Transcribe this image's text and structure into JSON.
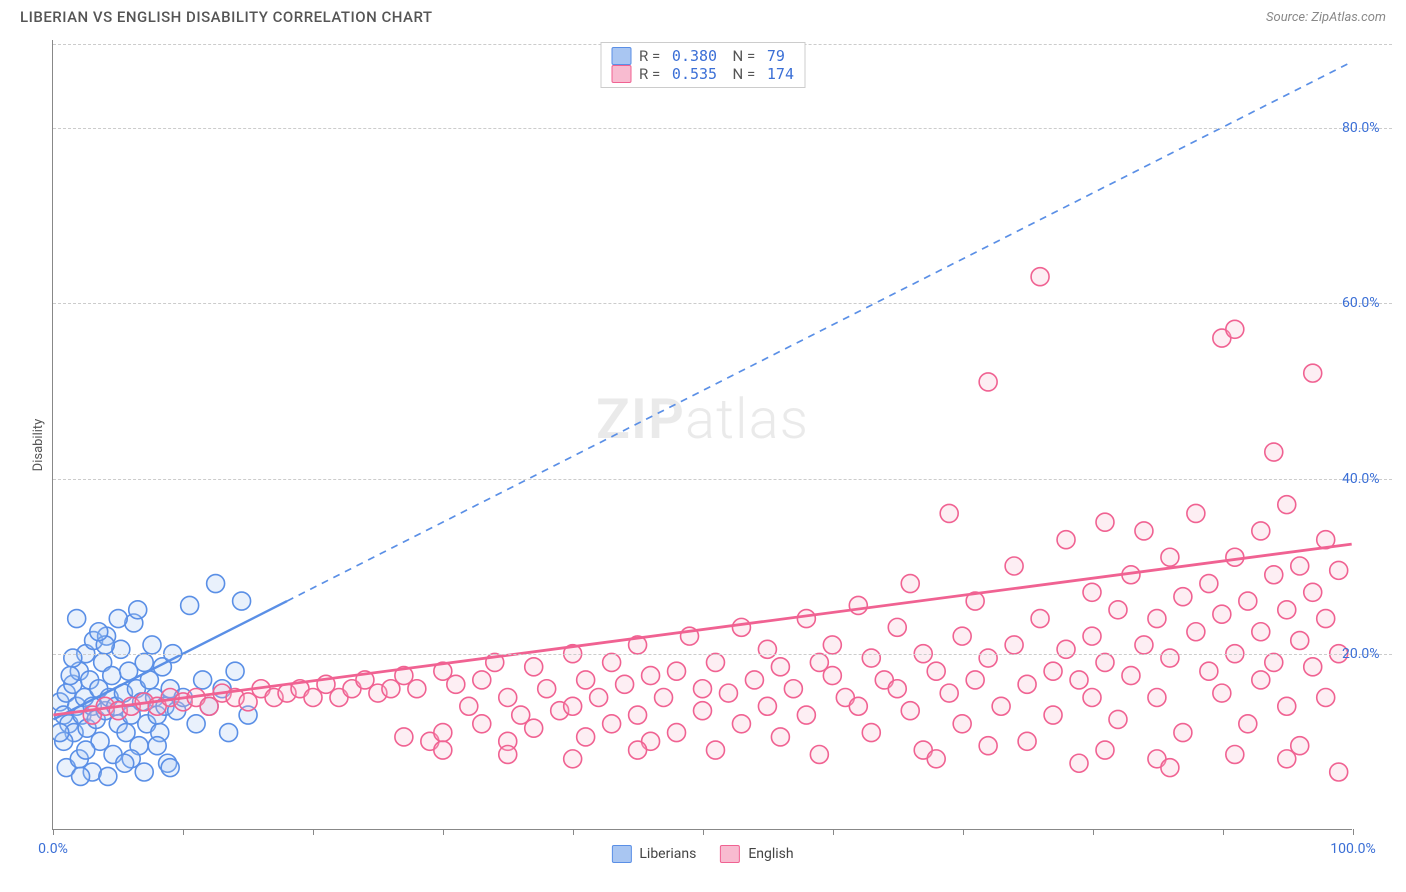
{
  "header": {
    "title": "LIBERIAN VS ENGLISH DISABILITY CORRELATION CHART",
    "source": "Source: ZipAtlas.com"
  },
  "chart": {
    "type": "scatter",
    "ylabel": "Disability",
    "watermark": "ZIPatlas",
    "background_color": "#ffffff",
    "grid_color": "#cccccc",
    "axis_color": "#888888",
    "label_color": "#3b6fd6",
    "label_fontsize": 14,
    "xlim": [
      0,
      100
    ],
    "ylim": [
      0,
      90
    ],
    "xticks": [
      0,
      10,
      20,
      30,
      40,
      50,
      60,
      70,
      80,
      90,
      100
    ],
    "xtick_labels": {
      "0": "0.0%",
      "100": "100.0%"
    },
    "yticks": [
      20,
      40,
      60,
      80
    ],
    "ytick_labels": {
      "20": "20.0%",
      "40": "40.0%",
      "60": "60.0%",
      "80": "80.0%"
    },
    "marker_radius": 9,
    "marker_stroke_width": 1.6,
    "marker_fill_opacity": 0.25,
    "series": [
      {
        "name": "Liberians",
        "color_stroke": "#5a8fe6",
        "color_fill": "#a9c6f2",
        "R": "0.380",
        "N": "79",
        "trend": {
          "slope": 0.75,
          "intercept": 12.5,
          "solid_x_max": 18,
          "dashed_x_max": 100,
          "width": 2.4
        },
        "points": [
          [
            0.5,
            14.5
          ],
          [
            0.8,
            13
          ],
          [
            1,
            15.5
          ],
          [
            1.2,
            12
          ],
          [
            1.5,
            16.5
          ],
          [
            1.6,
            11
          ],
          [
            1.8,
            14
          ],
          [
            2,
            18
          ],
          [
            2.2,
            13
          ],
          [
            2.4,
            15
          ],
          [
            2.5,
            20
          ],
          [
            2.6,
            11.5
          ],
          [
            2.8,
            17
          ],
          [
            3,
            14
          ],
          [
            3.1,
            21.5
          ],
          [
            3.3,
            12.5
          ],
          [
            3.5,
            16
          ],
          [
            3.6,
            10
          ],
          [
            3.8,
            19
          ],
          [
            4,
            13.5
          ],
          [
            4.1,
            22
          ],
          [
            4.3,
            15
          ],
          [
            4.5,
            17.5
          ],
          [
            4.6,
            8.5
          ],
          [
            4.8,
            14
          ],
          [
            5,
            12
          ],
          [
            5.2,
            20.5
          ],
          [
            5.4,
            15.5
          ],
          [
            5.6,
            11
          ],
          [
            5.8,
            18
          ],
          [
            6,
            13
          ],
          [
            6.2,
            23.5
          ],
          [
            6.4,
            16
          ],
          [
            6.6,
            9.5
          ],
          [
            6.8,
            14.5
          ],
          [
            7,
            19
          ],
          [
            7.2,
            12
          ],
          [
            7.4,
            17
          ],
          [
            7.6,
            21
          ],
          [
            7.8,
            15
          ],
          [
            8,
            13
          ],
          [
            8.2,
            11
          ],
          [
            8.4,
            18.5
          ],
          [
            8.6,
            14
          ],
          [
            8.8,
            7.5
          ],
          [
            9,
            16
          ],
          [
            9.2,
            20
          ],
          [
            9.5,
            13.5
          ],
          [
            10,
            15
          ],
          [
            10.5,
            25.5
          ],
          [
            11,
            12
          ],
          [
            11.5,
            17
          ],
          [
            12,
            14
          ],
          [
            12.5,
            28
          ],
          [
            13,
            16
          ],
          [
            13.5,
            11
          ],
          [
            14,
            18
          ],
          [
            14.5,
            26
          ],
          [
            15,
            13
          ],
          [
            1,
            7
          ],
          [
            2,
            8
          ],
          [
            3,
            6.5
          ],
          [
            4,
            21
          ],
          [
            5,
            24
          ],
          [
            1.5,
            19.5
          ],
          [
            2.5,
            9
          ],
          [
            3.5,
            22.5
          ],
          [
            0.8,
            10
          ],
          [
            1.3,
            17.5
          ],
          [
            2.1,
            6
          ],
          [
            6,
            8
          ],
          [
            7,
            6.5
          ],
          [
            8,
            9.5
          ],
          [
            9,
            7
          ],
          [
            5.5,
            7.5
          ],
          [
            4.2,
            6
          ],
          [
            6.5,
            25
          ],
          [
            1.8,
            24
          ],
          [
            0.5,
            11
          ]
        ]
      },
      {
        "name": "English",
        "color_stroke": "#f06292",
        "color_fill": "#f8bbd0",
        "R": "0.535",
        "N": "174",
        "trend": {
          "slope": 0.195,
          "intercept": 13,
          "solid_x_max": 100,
          "dashed_x_max": 100,
          "width": 2.8
        },
        "points": [
          [
            3,
            13
          ],
          [
            4,
            14
          ],
          [
            5,
            13.5
          ],
          [
            6,
            14
          ],
          [
            7,
            14.5
          ],
          [
            8,
            14
          ],
          [
            9,
            15
          ],
          [
            10,
            14.5
          ],
          [
            11,
            15
          ],
          [
            12,
            14
          ],
          [
            13,
            15.5
          ],
          [
            14,
            15
          ],
          [
            15,
            14.5
          ],
          [
            16,
            16
          ],
          [
            17,
            15
          ],
          [
            18,
            15.5
          ],
          [
            19,
            16
          ],
          [
            20,
            15
          ],
          [
            21,
            16.5
          ],
          [
            22,
            15
          ],
          [
            23,
            16
          ],
          [
            24,
            17
          ],
          [
            25,
            15.5
          ],
          [
            26,
            16
          ],
          [
            27,
            17.5
          ],
          [
            27,
            10.5
          ],
          [
            28,
            16
          ],
          [
            29,
            10
          ],
          [
            30,
            18
          ],
          [
            30,
            11
          ],
          [
            31,
            16.5
          ],
          [
            32,
            14
          ],
          [
            33,
            17
          ],
          [
            33,
            12
          ],
          [
            34,
            19
          ],
          [
            35,
            15
          ],
          [
            35,
            10
          ],
          [
            36,
            13
          ],
          [
            37,
            18.5
          ],
          [
            37,
            11.5
          ],
          [
            38,
            16
          ],
          [
            39,
            13.5
          ],
          [
            40,
            20
          ],
          [
            40,
            14
          ],
          [
            41,
            17
          ],
          [
            41,
            10.5
          ],
          [
            42,
            15
          ],
          [
            43,
            19
          ],
          [
            43,
            12
          ],
          [
            44,
            16.5
          ],
          [
            45,
            21
          ],
          [
            45,
            13
          ],
          [
            46,
            17.5
          ],
          [
            46,
            10
          ],
          [
            47,
            15
          ],
          [
            48,
            18
          ],
          [
            48,
            11
          ],
          [
            49,
            22
          ],
          [
            50,
            16
          ],
          [
            50,
            13.5
          ],
          [
            51,
            19
          ],
          [
            51,
            9
          ],
          [
            52,
            15.5
          ],
          [
            53,
            23
          ],
          [
            53,
            12
          ],
          [
            54,
            17
          ],
          [
            55,
            20.5
          ],
          [
            55,
            14
          ],
          [
            56,
            10.5
          ],
          [
            56,
            18.5
          ],
          [
            57,
            16
          ],
          [
            58,
            24
          ],
          [
            58,
            13
          ],
          [
            59,
            19
          ],
          [
            59,
            8.5
          ],
          [
            60,
            17.5
          ],
          [
            60,
            21
          ],
          [
            61,
            15
          ],
          [
            62,
            25.5
          ],
          [
            62,
            14
          ],
          [
            63,
            19.5
          ],
          [
            63,
            11
          ],
          [
            64,
            17
          ],
          [
            65,
            23
          ],
          [
            65,
            16
          ],
          [
            66,
            28
          ],
          [
            66,
            13.5
          ],
          [
            67,
            20
          ],
          [
            67,
            9
          ],
          [
            68,
            18
          ],
          [
            69,
            36
          ],
          [
            69,
            15.5
          ],
          [
            70,
            22
          ],
          [
            70,
            12
          ],
          [
            71,
            26
          ],
          [
            71,
            17
          ],
          [
            72,
            51
          ],
          [
            72,
            19.5
          ],
          [
            73,
            14
          ],
          [
            74,
            30
          ],
          [
            74,
            21
          ],
          [
            75,
            16.5
          ],
          [
            75,
            10
          ],
          [
            76,
            63
          ],
          [
            76,
            24
          ],
          [
            77,
            18
          ],
          [
            77,
            13
          ],
          [
            78,
            33
          ],
          [
            78,
            20.5
          ],
          [
            79,
            17
          ],
          [
            79,
            7.5
          ],
          [
            80,
            27
          ],
          [
            80,
            22
          ],
          [
            80,
            15
          ],
          [
            81,
            35
          ],
          [
            81,
            19
          ],
          [
            82,
            25
          ],
          [
            82,
            12.5
          ],
          [
            83,
            29
          ],
          [
            83,
            17.5
          ],
          [
            84,
            21
          ],
          [
            84,
            34
          ],
          [
            85,
            24
          ],
          [
            85,
            15
          ],
          [
            85,
            8
          ],
          [
            86,
            31
          ],
          [
            86,
            19.5
          ],
          [
            87,
            26.5
          ],
          [
            87,
            11
          ],
          [
            88,
            22.5
          ],
          [
            88,
            36
          ],
          [
            89,
            18
          ],
          [
            89,
            28
          ],
          [
            90,
            56
          ],
          [
            90,
            24.5
          ],
          [
            90,
            15.5
          ],
          [
            91,
            31
          ],
          [
            91,
            20
          ],
          [
            91,
            57
          ],
          [
            92,
            26
          ],
          [
            92,
            12
          ],
          [
            93,
            34
          ],
          [
            93,
            22.5
          ],
          [
            93,
            17
          ],
          [
            94,
            29
          ],
          [
            94,
            19
          ],
          [
            94,
            43
          ],
          [
            95,
            25
          ],
          [
            95,
            14
          ],
          [
            95,
            37
          ],
          [
            96,
            21.5
          ],
          [
            96,
            30
          ],
          [
            96,
            9.5
          ],
          [
            97,
            27
          ],
          [
            97,
            18.5
          ],
          [
            97,
            52
          ],
          [
            98,
            24
          ],
          [
            98,
            33
          ],
          [
            98,
            15
          ],
          [
            99,
            29.5
          ],
          [
            99,
            20
          ],
          [
            99,
            6.5
          ],
          [
            30,
            9
          ],
          [
            35,
            8.5
          ],
          [
            40,
            8
          ],
          [
            45,
            9
          ],
          [
            68,
            8
          ],
          [
            72,
            9.5
          ],
          [
            81,
            9
          ],
          [
            86,
            7
          ],
          [
            91,
            8.5
          ],
          [
            95,
            8
          ]
        ]
      }
    ]
  }
}
